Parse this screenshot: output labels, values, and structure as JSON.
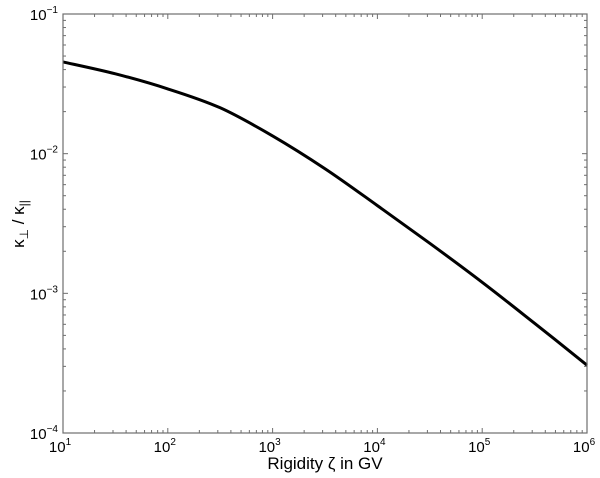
{
  "chart_data": {
    "type": "line",
    "title": "",
    "xlabel": "Rigidity ζ in GV",
    "ylabel": "κ⊥ / κ||",
    "ylabel_parts": {
      "kappa": "κ",
      "sub1": "⊥",
      "sep": " / ",
      "sub2": "||"
    },
    "xscale": "log",
    "yscale": "log",
    "xlim": [
      10,
      1000000
    ],
    "ylim": [
      0.0001,
      0.1
    ],
    "grid": false,
    "legend": null,
    "x_ticks": [
      {
        "base": "10",
        "exp": "1",
        "value": 10
      },
      {
        "base": "10",
        "exp": "2",
        "value": 100
      },
      {
        "base": "10",
        "exp": "3",
        "value": 1000
      },
      {
        "base": "10",
        "exp": "4",
        "value": 10000
      },
      {
        "base": "10",
        "exp": "5",
        "value": 100000
      },
      {
        "base": "10",
        "exp": "6",
        "value": 1000000
      }
    ],
    "y_ticks": [
      {
        "base": "10",
        "exp": "−1",
        "value": 0.1
      },
      {
        "base": "10",
        "exp": "−2",
        "value": 0.01
      },
      {
        "base": "10",
        "exp": "−3",
        "value": 0.001
      },
      {
        "base": "10",
        "exp": "−4",
        "value": 0.0001
      }
    ],
    "series": [
      {
        "name": "κ⊥/κ||",
        "color": "#000000",
        "x": [
          10,
          31.6,
          100,
          316,
          1000,
          3162,
          10000,
          31623,
          100000,
          316228,
          1000000
        ],
        "values": [
          0.0454,
          0.0373,
          0.0291,
          0.0213,
          0.0134,
          0.0078,
          0.00425,
          0.00228,
          0.0012,
          0.00061,
          0.000306
        ]
      }
    ]
  },
  "colors": {
    "frame": "#6e6e6e",
    "curve": "#000000",
    "background": "#ffffff"
  }
}
